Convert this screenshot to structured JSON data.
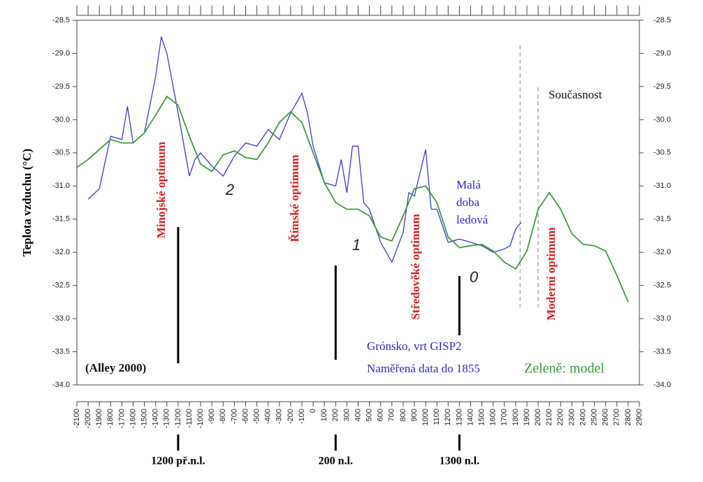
{
  "chart_data": {
    "type": "line",
    "y_label": "Teplota vzduchu (°C)",
    "xlim": [
      -2100,
      2900
    ],
    "xticks": [
      -2100,
      -2000,
      -1900,
      -1800,
      -1700,
      -1600,
      -1500,
      -1400,
      -1300,
      -1200,
      -1100,
      -1000,
      -900,
      -800,
      -700,
      -600,
      -500,
      -400,
      -300,
      -200,
      -100,
      0,
      100,
      200,
      300,
      400,
      500,
      600,
      700,
      800,
      900,
      1000,
      1100,
      1200,
      1300,
      1400,
      1500,
      1600,
      1700,
      1800,
      1900,
      2000,
      2100,
      2200,
      2300,
      2400,
      2500,
      2600,
      2700,
      2800,
      2900
    ],
    "ylim": [
      -34.0,
      -28.5
    ],
    "yticks": [
      -28.5,
      {
        "value": -29,
        "label": "-29.0"
      },
      -29.5,
      {
        "value": -30,
        "label": "-30.0"
      },
      -30.5,
      {
        "value": -31,
        "label": "-31.0"
      },
      -31.5,
      {
        "value": -32,
        "label": "-32.0"
      },
      -32.5,
      {
        "value": -33,
        "label": "-33.0"
      },
      -33.5,
      {
        "value": -34,
        "label": "-34.0"
      }
    ],
    "y2lim": [
      -34.0,
      -28.5
    ],
    "y2ticks": [
      -28.5,
      {
        "value": -29,
        "label": "-29.0"
      },
      -29.5,
      {
        "value": -30,
        "label": "-30.0"
      },
      -30.5,
      {
        "value": -31,
        "label": "-31.0"
      },
      -31.5,
      {
        "value": -32,
        "label": "-32.0"
      },
      -32.5,
      {
        "value": -33,
        "label": "-33.0"
      },
      -33.5,
      {
        "value": -34,
        "label": "-34.0"
      }
    ],
    "series": [
      {
        "name": "Grónsko, vrt GISP2",
        "color": "#3a3ad0",
        "x": [
          -2000,
          -1900,
          -1800,
          -1700,
          -1650,
          -1600,
          -1500,
          -1400,
          -1350,
          -1300,
          -1200,
          -1100,
          -1050,
          -1000,
          -900,
          -800,
          -700,
          -600,
          -500,
          -400,
          -300,
          -200,
          -100,
          -50,
          0,
          100,
          200,
          250,
          300,
          350,
          400,
          450,
          500,
          600,
          700,
          800,
          850,
          900,
          1000,
          1050,
          1100,
          1200,
          1300,
          1400,
          1500,
          1600,
          1700,
          1750,
          1800,
          1850
        ],
        "values": [
          -31.2,
          -31.04,
          -30.25,
          -30.3,
          -29.8,
          -30.35,
          -30.2,
          -29.35,
          -28.75,
          -29.0,
          -29.9,
          -30.85,
          -30.6,
          -30.5,
          -30.7,
          -30.85,
          -30.55,
          -30.35,
          -30.4,
          -30.15,
          -30.3,
          -29.9,
          -29.6,
          -29.9,
          -30.4,
          -30.95,
          -31.0,
          -30.6,
          -31.1,
          -30.4,
          -30.4,
          -31.25,
          -31.35,
          -31.85,
          -32.15,
          -31.7,
          -31.1,
          -31.15,
          -30.45,
          -31.35,
          -31.35,
          -31.85,
          -31.8,
          -31.85,
          -31.9,
          -32.0,
          -31.95,
          -31.9,
          -31.65,
          -31.55
        ]
      },
      {
        "name": "Zeleně: model",
        "color": "#3c9a3c",
        "x": [
          -2100,
          -2000,
          -1800,
          -1700,
          -1600,
          -1500,
          -1400,
          -1300,
          -1200,
          -1100,
          -1000,
          -900,
          -800,
          -700,
          -600,
          -500,
          -400,
          -300,
          -200,
          -100,
          0,
          100,
          200,
          300,
          400,
          500,
          600,
          700,
          800,
          900,
          1000,
          1100,
          1200,
          1300,
          1400,
          1500,
          1600,
          1700,
          1800,
          1900,
          2000,
          2100,
          2200,
          2300,
          2400,
          2500,
          2600,
          2700,
          2800
        ],
        "values": [
          -30.72,
          -30.6,
          -30.3,
          -30.35,
          -30.35,
          -30.2,
          -29.93,
          -29.65,
          -29.78,
          -30.25,
          -30.67,
          -30.78,
          -30.53,
          -30.47,
          -30.57,
          -30.6,
          -30.35,
          -30.04,
          -29.88,
          -30.04,
          -30.5,
          -30.95,
          -31.25,
          -31.35,
          -31.35,
          -31.45,
          -31.77,
          -31.83,
          -31.45,
          -31.04,
          -31.0,
          -31.25,
          -31.77,
          -31.93,
          -31.9,
          -31.88,
          -31.98,
          -32.15,
          -32.25,
          -31.98,
          -31.35,
          -31.1,
          -31.35,
          -31.72,
          -31.88,
          -31.9,
          -31.98,
          -32.35,
          -32.75
        ]
      }
    ],
    "annotations": [
      "Minojské optimum",
      "Římské optimum",
      "Středověké optimum",
      "Moderní optimum",
      "Současnost",
      "(Alley 2000)",
      "Naměřená data do 1855",
      "2",
      "1",
      "0"
    ],
    "ice_age_label": [
      "Malá",
      "doba",
      "ledová"
    ],
    "markers": [
      {
        "x": -1200,
        "label": "1200 př.n.l."
      },
      {
        "x": 200,
        "label": "200 n.l."
      },
      {
        "x": 1300,
        "label": "1300 n.l."
      }
    ],
    "dashed_x": [
      1840,
      2000
    ]
  }
}
